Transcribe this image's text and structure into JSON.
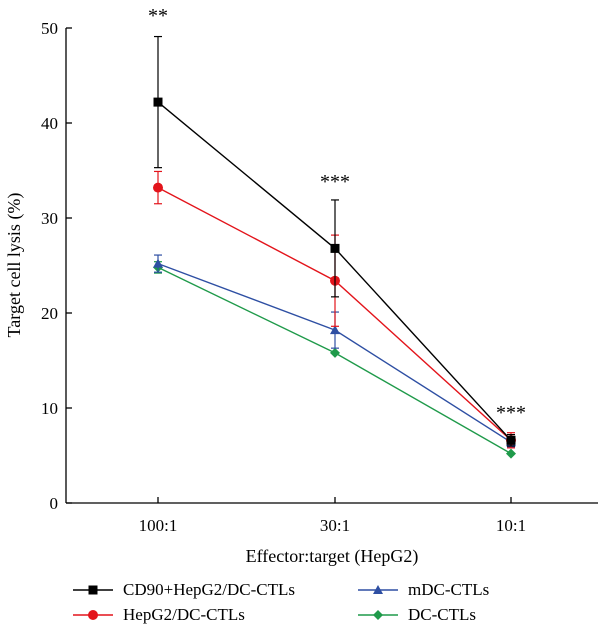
{
  "chart_data": {
    "type": "line",
    "xlabel": "Effector:target (HepG2)",
    "ylabel": "Target cell lysis (%)",
    "ylim": [
      0,
      50
    ],
    "yticks": [
      0,
      10,
      20,
      30,
      40,
      50
    ],
    "categories": [
      "100:1",
      "30:1",
      "10:1"
    ],
    "series": [
      {
        "name": "CD90+HepG2/DC-CTLs",
        "color": "#000000",
        "marker": "square",
        "values": [
          42.2,
          26.8,
          6.6
        ],
        "error": [
          6.9,
          5.1,
          0.6
        ]
      },
      {
        "name": "HepG2/DC-CTLs",
        "color": "#e3141b",
        "marker": "circle",
        "values": [
          33.2,
          23.4,
          6.6
        ],
        "error": [
          1.7,
          4.8,
          0.8
        ]
      },
      {
        "name": "mDC-CTLs",
        "color": "#2e4fa3",
        "marker": "triangle",
        "values": [
          25.2,
          18.2,
          6.4
        ],
        "error": [
          0.9,
          1.9,
          0.5
        ]
      },
      {
        "name": "DC-CTLs",
        "color": "#1f9a4a",
        "marker": "diamond",
        "values": [
          24.8,
          15.8,
          5.2
        ],
        "error": [
          0.6,
          0.0,
          0.0
        ]
      }
    ],
    "annotations": [
      {
        "category": "100:1",
        "text": "**"
      },
      {
        "category": "30:1",
        "text": "***"
      },
      {
        "category": "10:1",
        "text": "***"
      }
    ],
    "legend": {
      "placement": "bottom",
      "columns": 2
    }
  }
}
